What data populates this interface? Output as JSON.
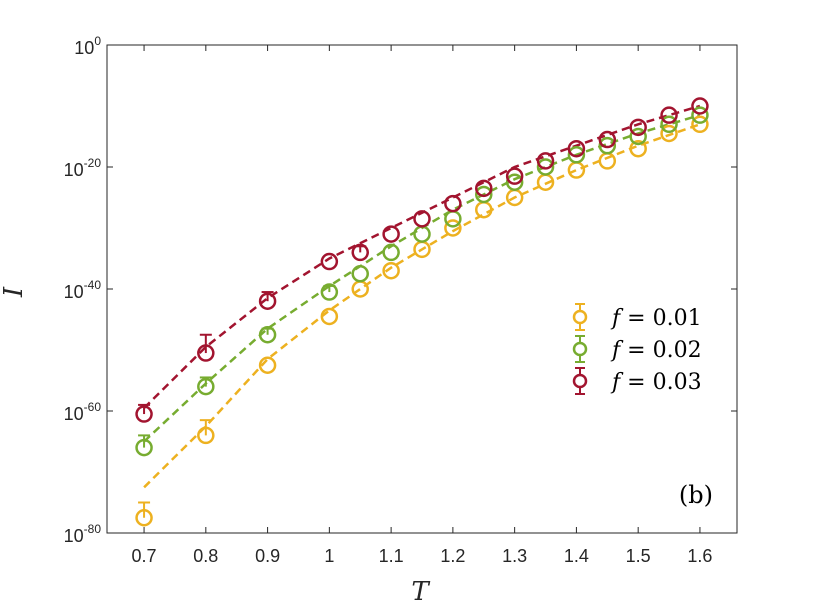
{
  "chart_data": {
    "type": "line",
    "title": "",
    "xlabel": "T",
    "ylabel": "I",
    "yscale": "log",
    "xlim": [
      0.64,
      1.66
    ],
    "ylim_exponent": [
      -80,
      0
    ],
    "x_ticks": [
      "0.7",
      "0.8",
      "0.9",
      "1",
      "1.1",
      "1.2",
      "1.3",
      "1.4",
      "1.5",
      "1.6"
    ],
    "y_ticks": [
      {
        "base": "10",
        "exp": "0",
        "value_exp": 0
      },
      {
        "base": "10",
        "exp": "-20",
        "value_exp": -20
      },
      {
        "base": "10",
        "exp": "-40",
        "value_exp": -40
      },
      {
        "base": "10",
        "exp": "-60",
        "value_exp": -60
      },
      {
        "base": "10",
        "exp": "-80",
        "value_exp": -80
      }
    ],
    "panel_label": "(b)",
    "legend_location": "right-middle",
    "series": [
      {
        "name": "f = 0.01",
        "legend_symbol": "f",
        "legend_value": " = 0.01",
        "color": "#EDB120",
        "fit_x": [
          0.7,
          0.8,
          0.9,
          1.0,
          1.1,
          1.2,
          1.3,
          1.4,
          1.5,
          1.6
        ],
        "fit_log10": [
          -72.5,
          -62.5,
          -51.5,
          -43.5,
          -36.5,
          -30.5,
          -25.0,
          -20.5,
          -16.5,
          -13.0
        ],
        "points": [
          {
            "x": 0.7,
            "log10": -77.5,
            "err_up": 2.5
          },
          {
            "x": 0.8,
            "log10": -64.0,
            "err_up": 2.5
          },
          {
            "x": 0.9,
            "log10": -52.5,
            "err_up": 0
          },
          {
            "x": 1.0,
            "log10": -44.5,
            "err_up": 0
          },
          {
            "x": 1.05,
            "log10": -40.0,
            "err_up": 0
          },
          {
            "x": 1.1,
            "log10": -37.0,
            "err_up": 0
          },
          {
            "x": 1.15,
            "log10": -33.5,
            "err_up": 0
          },
          {
            "x": 1.2,
            "log10": -30.0,
            "err_up": 0
          },
          {
            "x": 1.25,
            "log10": -27.0,
            "err_up": 0
          },
          {
            "x": 1.3,
            "log10": -25.0,
            "err_up": 0
          },
          {
            "x": 1.35,
            "log10": -22.5,
            "err_up": 0
          },
          {
            "x": 1.4,
            "log10": -20.5,
            "err_up": 0
          },
          {
            "x": 1.45,
            "log10": -19.0,
            "err_up": 0
          },
          {
            "x": 1.5,
            "log10": -17.0,
            "err_up": 0
          },
          {
            "x": 1.55,
            "log10": -14.5,
            "err_up": 0
          },
          {
            "x": 1.6,
            "log10": -13.0,
            "err_up": 0
          }
        ]
      },
      {
        "name": "f = 0.02",
        "legend_symbol": "f",
        "legend_value": " = 0.02",
        "color": "#77AC30",
        "fit_x": [
          0.7,
          0.8,
          0.9,
          1.0,
          1.1,
          1.2,
          1.3,
          1.4,
          1.5,
          1.6
        ],
        "fit_log10": [
          -65.0,
          -55.5,
          -46.5,
          -39.5,
          -33.0,
          -27.0,
          -22.0,
          -18.0,
          -14.5,
          -11.5
        ],
        "points": [
          {
            "x": 0.7,
            "log10": -66.0,
            "err_up": 2.0
          },
          {
            "x": 0.8,
            "log10": -56.0,
            "err_up": 1.5
          },
          {
            "x": 0.9,
            "log10": -47.5,
            "err_up": 1.0
          },
          {
            "x": 1.0,
            "log10": -40.5,
            "err_up": 1.0
          },
          {
            "x": 1.05,
            "log10": -37.5,
            "err_up": 0
          },
          {
            "x": 1.1,
            "log10": -34.0,
            "err_up": 0
          },
          {
            "x": 1.15,
            "log10": -31.0,
            "err_up": 0
          },
          {
            "x": 1.2,
            "log10": -28.5,
            "err_up": 0
          },
          {
            "x": 1.25,
            "log10": -24.5,
            "err_up": 0
          },
          {
            "x": 1.3,
            "log10": -22.5,
            "err_up": 0
          },
          {
            "x": 1.35,
            "log10": -20.0,
            "err_up": 0
          },
          {
            "x": 1.4,
            "log10": -18.0,
            "err_up": 0
          },
          {
            "x": 1.45,
            "log10": -16.5,
            "err_up": 0
          },
          {
            "x": 1.5,
            "log10": -15.0,
            "err_up": 0
          },
          {
            "x": 1.55,
            "log10": -13.0,
            "err_up": 0
          },
          {
            "x": 1.6,
            "log10": -11.5,
            "err_up": 0
          }
        ]
      },
      {
        "name": "f = 0.03",
        "legend_symbol": "f",
        "legend_value": " = 0.03",
        "color": "#A2142F",
        "fit_x": [
          0.7,
          0.8,
          0.9,
          1.0,
          1.1,
          1.2,
          1.3,
          1.4,
          1.5,
          1.6
        ],
        "fit_log10": [
          -59.5,
          -49.5,
          -41.5,
          -35.0,
          -30.0,
          -25.0,
          -20.0,
          -16.5,
          -13.0,
          -10.0
        ],
        "points": [
          {
            "x": 0.7,
            "log10": -60.5,
            "err_up": 1.5
          },
          {
            "x": 0.8,
            "log10": -50.5,
            "err_up": 3.0
          },
          {
            "x": 0.9,
            "log10": -42.0,
            "err_up": 1.5
          },
          {
            "x": 1.0,
            "log10": -35.5,
            "err_up": 0
          },
          {
            "x": 1.05,
            "log10": -34.0,
            "err_up": 1.0
          },
          {
            "x": 1.1,
            "log10": -31.0,
            "err_up": 0
          },
          {
            "x": 1.15,
            "log10": -28.5,
            "err_up": 0
          },
          {
            "x": 1.2,
            "log10": -26.0,
            "err_up": 0
          },
          {
            "x": 1.25,
            "log10": -23.5,
            "err_up": 0
          },
          {
            "x": 1.3,
            "log10": -21.5,
            "err_up": 0
          },
          {
            "x": 1.35,
            "log10": -19.0,
            "err_up": 0
          },
          {
            "x": 1.4,
            "log10": -17.0,
            "err_up": 0
          },
          {
            "x": 1.45,
            "log10": -15.5,
            "err_up": 0
          },
          {
            "x": 1.5,
            "log10": -13.5,
            "err_up": 0
          },
          {
            "x": 1.55,
            "log10": -11.5,
            "err_up": 0
          },
          {
            "x": 1.6,
            "log10": -10.0,
            "err_up": 0
          }
        ]
      }
    ]
  }
}
